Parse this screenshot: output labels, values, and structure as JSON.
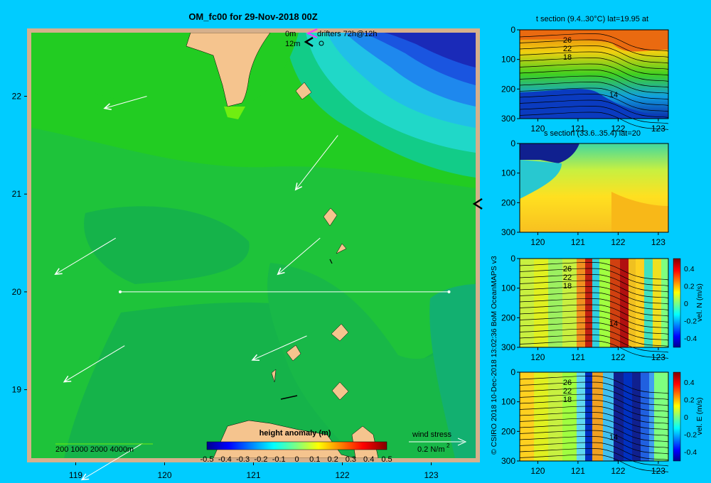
{
  "title": "OM_fc00 for 29-Nov-2018 00Z",
  "credit": "© CSIRO 2018   10-Dec-2018 13:02:36 BoM OceanMAPS v3",
  "colors": {
    "background": "#00ccff",
    "land": "#f5c48e",
    "vector": "#ffffff",
    "drifter": "#ff33ff"
  },
  "legend": {
    "drifters": "drifters 72h@12h",
    "depth_0": "0m",
    "depth_12": "12m",
    "bathymetry": "200   1000   2000   4000m",
    "wind_stress_label": "wind stress",
    "wind_stress_value": "0.2 N/m",
    "wind_stress_exp": "2"
  },
  "chart_data": [
    {
      "type": "heatmap",
      "panel": "map",
      "x_ticks": [
        "119",
        "120",
        "121",
        "122",
        "123"
      ],
      "y_ticks": [
        "22",
        "21",
        "20",
        "19"
      ],
      "xlim": [
        118.5,
        123.5
      ],
      "ylim": [
        18.3,
        22.65
      ],
      "colorbar_label": "height anomaly (m)",
      "colorbar_ticks": [
        "-0.5",
        "-0.4",
        "-0.3",
        "-0.2",
        "-0.1",
        "0",
        "0.1",
        "0.2",
        "0.3",
        "0.4",
        "0.5"
      ],
      "section_line": {
        "lat": 20,
        "lon": [
          119.5,
          123.2
        ]
      },
      "wind_vectors": [
        {
          "lon": 119.8,
          "lat": 22.0,
          "u": -0.35,
          "v": -0.1
        },
        {
          "lon": 121.95,
          "lat": 21.6,
          "u": -0.35,
          "v": -0.45
        },
        {
          "lon": 119.45,
          "lat": 20.55,
          "u": -0.5,
          "v": -0.3
        },
        {
          "lon": 121.75,
          "lat": 20.55,
          "u": -0.35,
          "v": -0.3
        },
        {
          "lon": 119.55,
          "lat": 19.45,
          "u": -0.5,
          "v": -0.3
        },
        {
          "lon": 121.6,
          "lat": 19.55,
          "u": -0.45,
          "v": -0.2
        },
        {
          "lon": 119.75,
          "lat": 18.45,
          "u": -0.5,
          "v": -0.3
        }
      ]
    },
    {
      "type": "heatmap",
      "panel": "t-section",
      "title": "t section (9.4..30°C) lat=19.95 at",
      "x_ticks": [
        "120",
        "121",
        "122",
        "123"
      ],
      "y_ticks": [
        "0",
        "100",
        "200",
        "300"
      ],
      "contour_labels": [
        "26",
        "22",
        "18",
        "14"
      ]
    },
    {
      "type": "heatmap",
      "panel": "s-section",
      "title": "s section (33.6..35.4) lat=20",
      "x_ticks": [
        "120",
        "121",
        "122",
        "123"
      ],
      "y_ticks": [
        "0",
        "100",
        "200",
        "300"
      ]
    },
    {
      "type": "heatmap",
      "panel": "vel-n-section",
      "colorbar_label": "vel. N (m/s)",
      "x_ticks": [
        "120",
        "121",
        "122",
        "123"
      ],
      "y_ticks": [
        "0",
        "100",
        "200",
        "300"
      ],
      "contour_labels": [
        "26",
        "22",
        "18",
        "14"
      ],
      "colorbar_ticks": [
        "0.4",
        "0.2",
        "0",
        "-0.2",
        "-0.4"
      ]
    },
    {
      "type": "heatmap",
      "panel": "vel-e-section",
      "colorbar_label": "vel. E (m/s)",
      "x_ticks": [
        "120",
        "121",
        "122",
        "123"
      ],
      "y_ticks": [
        "0",
        "100",
        "200",
        "300"
      ],
      "contour_labels": [
        "26",
        "22",
        "18",
        "14"
      ],
      "colorbar_ticks": [
        "0.4",
        "0.2",
        "0",
        "-0.2",
        "-0.4"
      ]
    }
  ]
}
